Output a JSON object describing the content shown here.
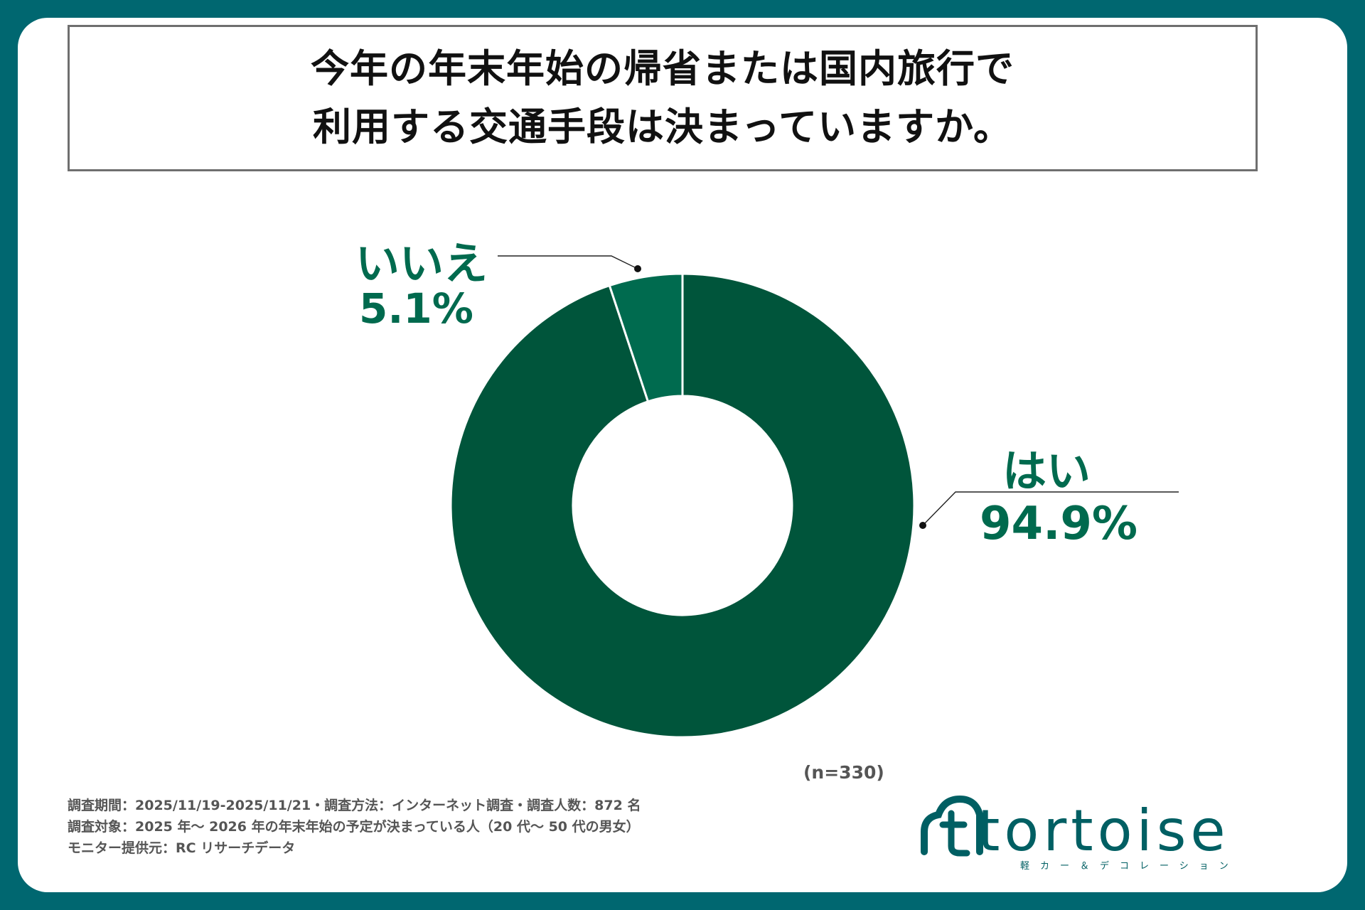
{
  "title": {
    "line1": "今年の年末年始の帰省または国内旅行で",
    "line2": "利用する交通手段は決まっていますか。"
  },
  "chart_data": {
    "type": "pie",
    "style": "donut",
    "slices": [
      {
        "name": "はい",
        "value": 94.9,
        "label": "94.9%",
        "color": "#00553b"
      },
      {
        "name": "いいえ",
        "value": 5.1,
        "label": "5.1%",
        "color": "#006b4f"
      }
    ]
  },
  "sample_size": "(n=330)",
  "notes": [
    "調査期間：2025/11/19-2025/11/21・調査方法：インターネット調査・調査人数：872 名",
    "調査対象：2025 年～ 2026 年の年末年始の予定が決まっている人（20 代～ 50 代の男女）",
    "モニター提供元：RC リサーチデータ"
  ],
  "logo": {
    "text": "tortoise",
    "subtitle": "軽カー＆デコレーション",
    "color": "#005f63"
  },
  "colors": {
    "frame": "#006770",
    "label": "#006a4e"
  }
}
